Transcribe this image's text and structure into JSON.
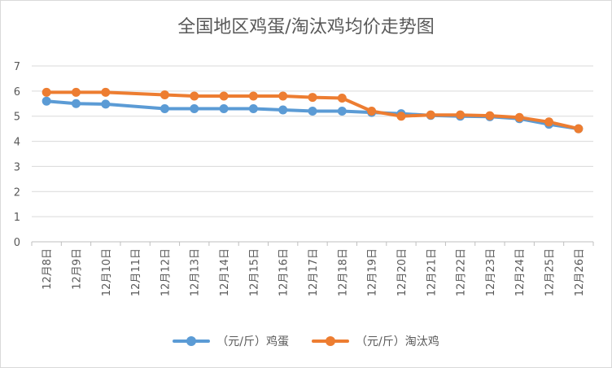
{
  "chart_data": {
    "type": "line",
    "title": "全国地区鸡蛋/淘汰鸡均价走势图",
    "categories": [
      "12月8日",
      "12月9日",
      "12月10日",
      "12月11日",
      "12月12日",
      "12月13日",
      "12月14日",
      "12月15日",
      "12月16日",
      "12月17日",
      "12月18日",
      "12月19日",
      "12月20日",
      "12月21日",
      "12月22日",
      "12月23日",
      "12月24日",
      "12月25日",
      "12月26日"
    ],
    "ylim": [
      0,
      7
    ],
    "yticks": [
      0,
      1,
      2,
      3,
      4,
      5,
      6,
      7
    ],
    "grid": true,
    "legend_position": "bottom",
    "series": [
      {
        "name": "（元/斤）鸡蛋",
        "color": "#5B9BD5",
        "values": [
          5.6,
          5.5,
          5.48,
          null,
          5.3,
          5.3,
          5.3,
          5.3,
          5.25,
          5.2,
          5.2,
          5.15,
          5.1,
          5.03,
          5.0,
          4.98,
          4.9,
          4.68,
          4.5
        ]
      },
      {
        "name": "（元/斤）淘汰鸡",
        "color": "#ED7D31",
        "values": [
          5.95,
          5.95,
          5.95,
          null,
          5.85,
          5.8,
          5.8,
          5.8,
          5.8,
          5.75,
          5.72,
          5.2,
          5.0,
          5.05,
          5.05,
          5.02,
          4.95,
          4.77,
          4.5
        ]
      }
    ]
  }
}
